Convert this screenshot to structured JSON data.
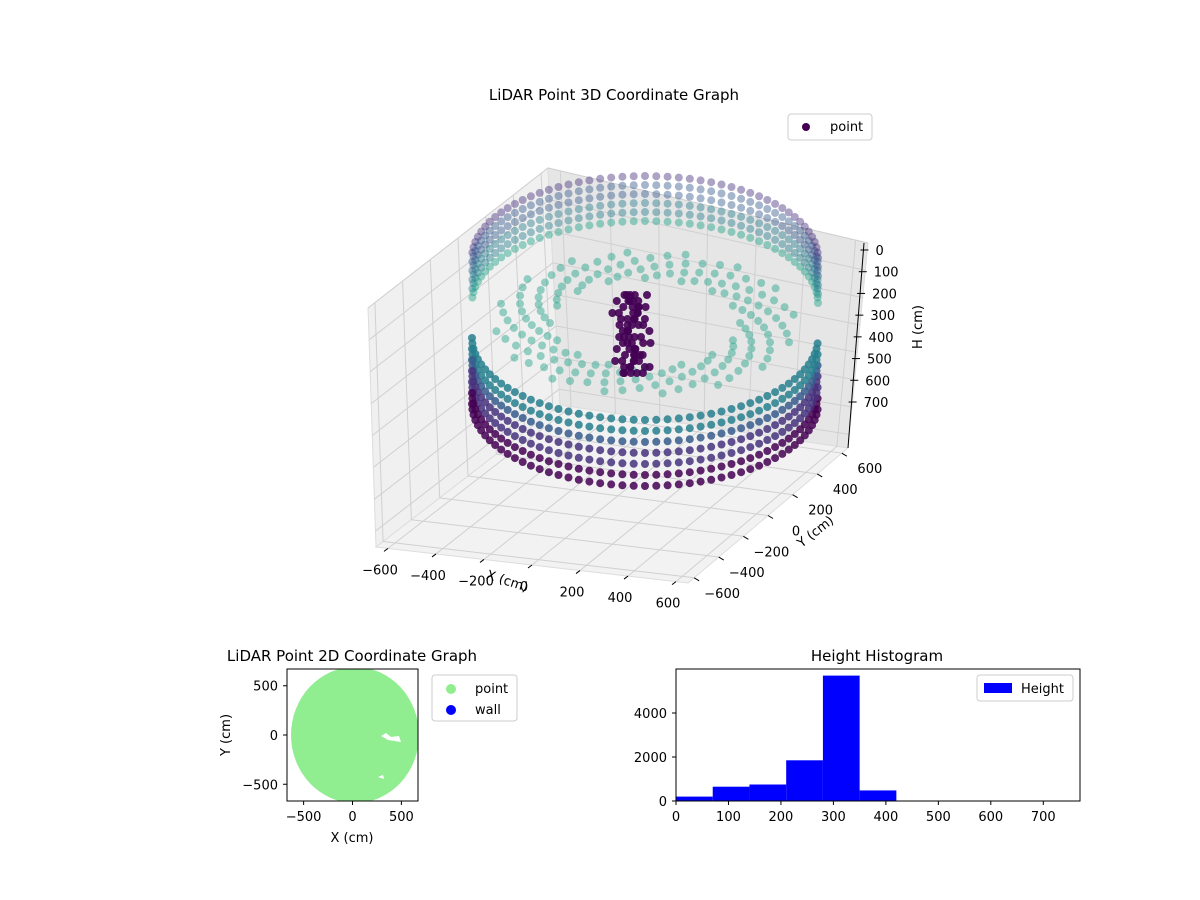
{
  "chart_data": [
    {
      "type": "scatter",
      "projection": "3d",
      "title": "LiDAR Point 3D Coordinate Graph",
      "xlabel": "X (cm)",
      "ylabel": "Y (cm)",
      "zlabel": "H (cm)",
      "x_ticks": [
        -600,
        -400,
        -200,
        0,
        200,
        400,
        600
      ],
      "y_ticks": [
        -600,
        -400,
        -200,
        0,
        200,
        400,
        600
      ],
      "z_ticks": [
        0,
        100,
        200,
        300,
        400,
        500,
        600,
        700
      ],
      "xlim": [
        -650,
        650
      ],
      "ylim": [
        -650,
        650
      ],
      "zlim": [
        750,
        0
      ],
      "z_inverted": true,
      "legend": {
        "position": "top-right",
        "entries": [
          {
            "label": "point",
            "color": "#440154"
          }
        ]
      },
      "colormap": "viridis",
      "series": [
        {
          "name": "point",
          "description_points": [
            {
              "shape": "ring",
              "radius": 620,
              "h_range": [
                0,
                360
              ]
            },
            {
              "shape": "central-cluster",
              "center": [
                30,
                60
              ],
              "h_range": [
                150,
                520
              ]
            },
            {
              "shape": "sparse-interior",
              "h_range": [
                250,
                420
              ]
            }
          ]
        }
      ],
      "grid": true
    },
    {
      "type": "scatter",
      "title": "LiDAR Point 2D Coordinate Graph",
      "xlabel": "X (cm)",
      "ylabel": "Y (cm)",
      "x_ticks": [
        -500,
        0,
        500
      ],
      "y_ticks": [
        500,
        0,
        -500
      ],
      "xlim": [
        -670,
        670
      ],
      "ylim": [
        -670,
        670
      ],
      "legend": {
        "position": "right-outside",
        "entries": [
          {
            "label": "point",
            "color": "#90ee90"
          },
          {
            "label": "wall",
            "color": "#0000ff"
          }
        ]
      },
      "series": [
        {
          "name": "point",
          "shape": "filled-disk",
          "center": [
            0,
            0
          ],
          "radius": 640,
          "gaps": [
            [
              250,
              380,
              390,
              360
            ],
            [
              250,
              -420,
              270,
              -410
            ]
          ]
        },
        {
          "name": "wall",
          "points": []
        }
      ]
    },
    {
      "type": "bar",
      "title": "Height Histogram",
      "xlabel": "",
      "ylabel": "",
      "x_ticks": [
        0,
        100,
        200,
        300,
        400,
        500,
        600,
        700
      ],
      "y_ticks": [
        0,
        2000,
        4000
      ],
      "xlim": [
        0,
        770
      ],
      "ylim": [
        0,
        6000
      ],
      "legend": {
        "position": "top-right",
        "entries": [
          {
            "label": "Height",
            "color": "#0000ff"
          }
        ]
      },
      "bin_edges": [
        0,
        70,
        140,
        210,
        280,
        350,
        420,
        490,
        560,
        630,
        700
      ],
      "series": [
        {
          "name": "Height",
          "color": "#0000ff",
          "values": [
            200,
            650,
            750,
            1850,
            5700,
            480,
            0,
            0,
            0,
            0
          ]
        }
      ]
    }
  ]
}
